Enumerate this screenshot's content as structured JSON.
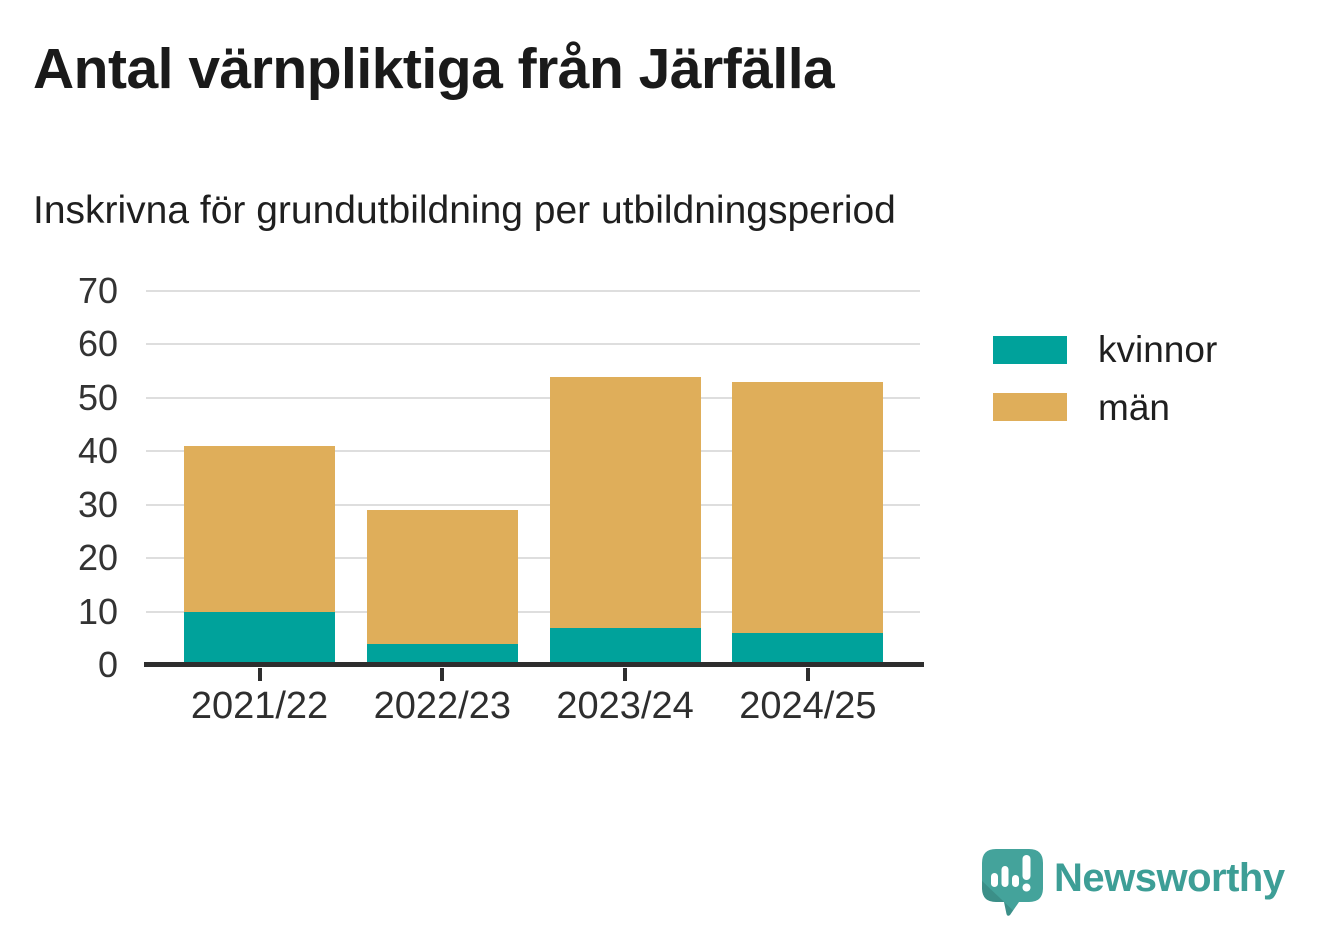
{
  "chart_data": {
    "type": "bar",
    "stacked": true,
    "title": "Antal värnpliktiga från Järfälla",
    "subtitle": "Inskrivna för grundutbildning per utbildningsperiod",
    "categories": [
      "2021/22",
      "2022/23",
      "2023/24",
      "2024/25"
    ],
    "series": [
      {
        "name": "kvinnor",
        "color": "#00A29B",
        "values": [
          10,
          4,
          7,
          6
        ]
      },
      {
        "name": "män",
        "color": "#DFAE5A",
        "values": [
          31,
          25,
          47,
          47
        ]
      }
    ],
    "stack_totals": [
      41,
      29,
      54,
      53
    ],
    "xlabel": "",
    "ylabel": "",
    "ylim": [
      0,
      70
    ],
    "yticks": [
      0,
      10,
      20,
      30,
      40,
      50,
      60,
      70
    ],
    "grid": true,
    "legend_position": "right"
  },
  "branding": {
    "name": "Newsworthy",
    "text_color": "#3D9E96",
    "icon_color": "#44A39B",
    "icon": "speech-bubble-with-bar-chart-and-exclamation"
  },
  "colors": {
    "background": "#FFFFFF",
    "title": "#1A1A1A",
    "subtitle": "#1F1F1F",
    "axis": "#2E2E2E",
    "gridline": "#DEDEDE",
    "y_tick_labels": "#333333",
    "x_tick_labels": "#2E2E2E"
  }
}
